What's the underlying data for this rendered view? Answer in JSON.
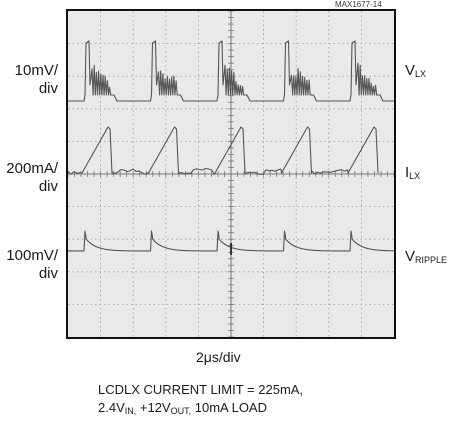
{
  "chart_data": {
    "type": "oscilloscope",
    "figure_code": "MAX1677-14",
    "x_scale": "2μs/div",
    "grid": true,
    "channels": [
      {
        "name": "V",
        "name_sub": "LX",
        "scale_line1": "10mV/",
        "scale_line2": "div"
      },
      {
        "name": "I",
        "name_sub": "LX",
        "scale_line1": "200mA/",
        "scale_line2": "div"
      },
      {
        "name": "V",
        "name_sub": "RIPPLE",
        "scale_line1": "100mV/",
        "scale_line2": "div"
      }
    ],
    "caption": {
      "line1": "LCDLX CURRENT LIMIT = 225mA,",
      "line2_a": "2.4V",
      "line2_a_sub": "IN,",
      "line2_b": " +12V",
      "line2_b_sub": "OUT,",
      "line2_c": " 10mA LOAD"
    }
  }
}
